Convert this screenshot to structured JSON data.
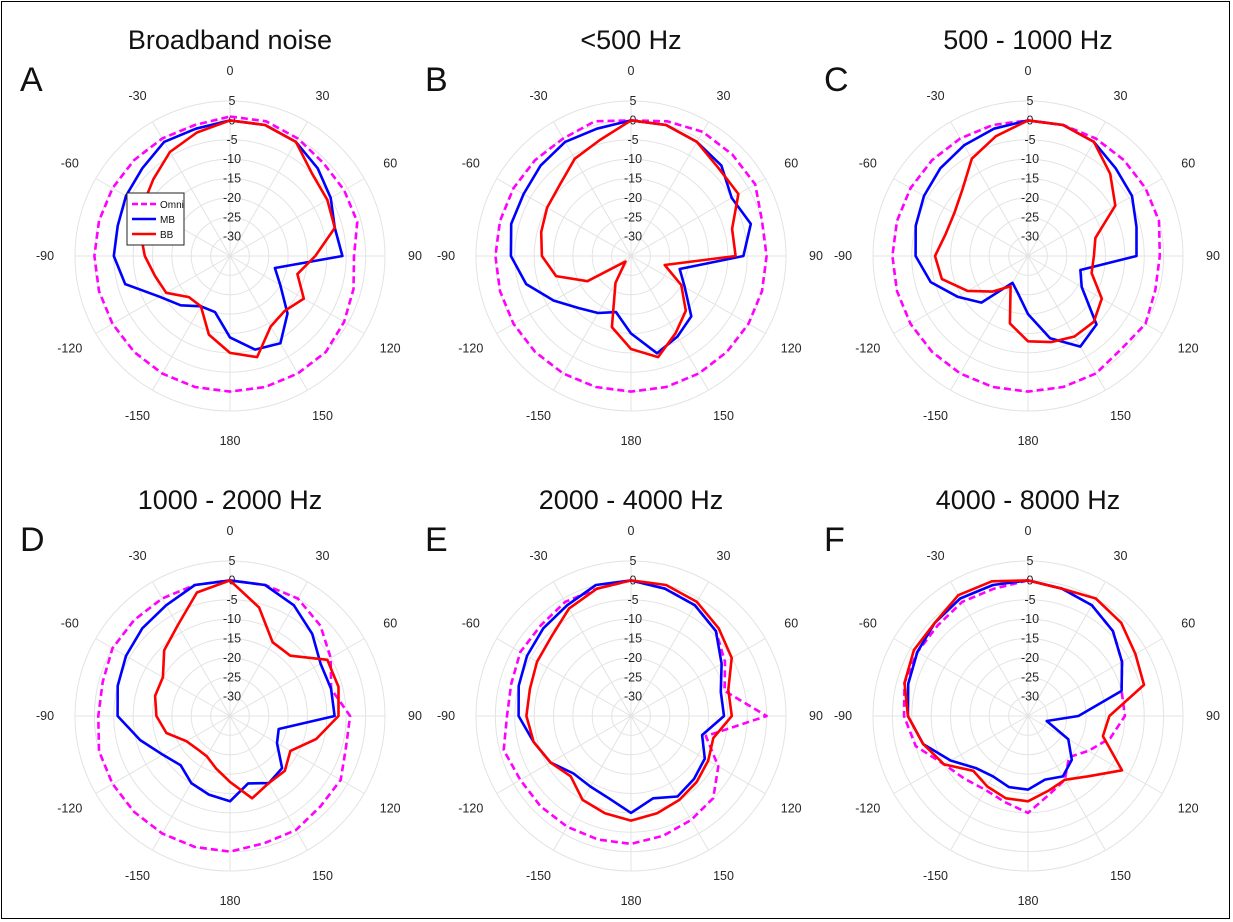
{
  "colors": {
    "omni": "#ff00ff",
    "mb": "#0000ff",
    "bb": "#ff0000",
    "grid": "#e3e3e3"
  },
  "legend": {
    "entries": [
      {
        "series": "omni",
        "label": "Omni",
        "style": "dashed"
      },
      {
        "series": "mb",
        "label": "MB",
        "style": "solid"
      },
      {
        "series": "bb",
        "label": "BB",
        "style": "solid"
      }
    ]
  },
  "chart_data": [
    {
      "type": "polar",
      "letter": "A",
      "title": "Broadband noise",
      "angle_ticks": [
        "0",
        "30",
        "60",
        "90",
        "120",
        "150",
        "180",
        "-150",
        "-120",
        "-90",
        "-60",
        "-30"
      ],
      "radial_ticks": [
        "5",
        "0",
        "-5",
        "-10",
        "-15",
        "-20",
        "-25",
        "-30"
      ],
      "rlim": [
        -35,
        5
      ],
      "angles": [
        0,
        15,
        30,
        45,
        60,
        75,
        90,
        105,
        120,
        135,
        150,
        165,
        180,
        -165,
        -150,
        -135,
        -120,
        -105,
        -90,
        -75,
        -60,
        -45,
        -30,
        -15
      ],
      "series": [
        {
          "name": "Omni",
          "key": "omni",
          "values": [
            1,
            1,
            0,
            -1,
            -1,
            -1,
            -3,
            -2,
            -1,
            0,
            0,
            0,
            0,
            0,
            0,
            0,
            0,
            0,
            0,
            0,
            0,
            0,
            0,
            0
          ]
        },
        {
          "name": "MB",
          "key": "mb",
          "values": [
            0,
            0,
            -1,
            -3,
            -5,
            -7,
            -6,
            -23,
            -20,
            -14,
            -9,
            -10,
            -14,
            -20,
            -20,
            -17,
            -14,
            -7,
            -5,
            -5,
            -4,
            -3,
            -1,
            -1
          ]
        },
        {
          "name": "BB",
          "key": "bb",
          "values": [
            0,
            0,
            -1,
            -5,
            -6,
            -7,
            -13,
            -17,
            -13,
            -15,
            -14,
            -8,
            -10,
            -14,
            -20,
            -20,
            -16,
            -15,
            -13,
            -11,
            -9,
            -7,
            -4,
            -2
          ]
        }
      ]
    },
    {
      "type": "polar",
      "letter": "B",
      "title": "<500 Hz",
      "angle_ticks": [
        "0",
        "30",
        "60",
        "90",
        "120",
        "150",
        "180",
        "-150",
        "-120",
        "-90",
        "-60",
        "-30"
      ],
      "radial_ticks": [
        "5",
        "0",
        "-5",
        "-10",
        "-15",
        "-20",
        "-25",
        "-30"
      ],
      "rlim": [
        -35,
        5
      ],
      "angles": [
        0,
        15,
        30,
        45,
        60,
        75,
        90,
        105,
        120,
        135,
        150,
        165,
        180,
        -165,
        -150,
        -135,
        -120,
        -105,
        -90,
        -75,
        -60,
        -45,
        -30,
        -15
      ],
      "series": [
        {
          "name": "Omni",
          "key": "omni",
          "values": [
            0,
            1,
            2,
            2,
            2,
            0,
            0,
            0,
            0,
            0,
            0,
            0,
            0,
            0,
            0,
            0,
            0,
            0,
            0,
            0,
            0,
            0,
            0,
            1
          ]
        },
        {
          "name": "MB",
          "key": "mb",
          "values": [
            0,
            0,
            -1,
            -2,
            -5,
            -3,
            -6,
            -22,
            -19,
            -13,
            -11,
            -9,
            -15,
            -20,
            -18,
            -16,
            -12,
            -7,
            -4,
            -3,
            -3,
            -2,
            -1,
            -1
          ]
        },
        {
          "name": "BB",
          "key": "bb",
          "values": [
            0,
            0,
            -1,
            -3,
            -3,
            -8,
            -8,
            -26,
            -20,
            -15,
            -12,
            -8,
            -11,
            -16,
            -27,
            -33,
            -22,
            -15,
            -12,
            -11,
            -10,
            -9,
            -6,
            -4
          ]
        }
      ]
    },
    {
      "type": "polar",
      "letter": "C",
      "title": "500 - 1000 Hz",
      "angle_ticks": [
        "0",
        "30",
        "60",
        "90",
        "120",
        "150",
        "180",
        "-150",
        "-120",
        "-90",
        "-60",
        "-30"
      ],
      "radial_ticks": [
        "5",
        "0",
        "-5",
        "-10",
        "-15",
        "-20",
        "-25",
        "-30"
      ],
      "rlim": [
        -35,
        5
      ],
      "angles": [
        0,
        15,
        30,
        45,
        60,
        75,
        90,
        105,
        120,
        135,
        150,
        165,
        180,
        -165,
        -150,
        -135,
        -120,
        -105,
        -90,
        -75,
        -60,
        -45,
        -30,
        -15
      ],
      "series": [
        {
          "name": "Omni",
          "key": "omni",
          "values": [
            0,
            0,
            0,
            0,
            0,
            0,
            -1,
            -1,
            0,
            -1,
            0,
            0,
            0,
            0,
            0,
            0,
            0,
            0,
            0,
            0,
            0,
            0,
            0,
            0
          ]
        },
        {
          "name": "MB",
          "key": "mb",
          "values": [
            0,
            0,
            -1,
            -3,
            -4,
            -6,
            -7,
            -21,
            -19,
            -10,
            -8,
            -13,
            -20,
            -25,
            -27,
            -18,
            -14,
            -9,
            -6,
            -5,
            -4,
            -3,
            -2,
            -1
          ]
        },
        {
          "name": "BB",
          "key": "bb",
          "values": [
            0,
            0,
            -1,
            -5,
            -9,
            -17,
            -18,
            -18,
            -13,
            -11,
            -11,
            -12,
            -13,
            -17,
            -26,
            -22,
            -17,
            -12,
            -11,
            -13,
            -13,
            -11,
            -6,
            -3
          ]
        }
      ]
    },
    {
      "type": "polar",
      "letter": "D",
      "title": "1000 - 2000 Hz",
      "angle_ticks": [
        "0",
        "30",
        "60",
        "90",
        "120",
        "150",
        "180",
        "-150",
        "-120",
        "-90",
        "-60",
        "-30"
      ],
      "radial_ticks": [
        "5",
        "0",
        "-5",
        "-10",
        "-15",
        "-20",
        "-25",
        "-30"
      ],
      "rlim": [
        -35,
        5
      ],
      "angles": [
        0,
        15,
        30,
        45,
        60,
        75,
        90,
        105,
        120,
        135,
        150,
        165,
        180,
        -165,
        -150,
        -135,
        -120,
        -105,
        -90,
        -75,
        -60,
        -45,
        -30,
        -15
      ],
      "series": [
        {
          "name": "Omni",
          "key": "omni",
          "values": [
            0,
            0,
            0,
            -2,
            -5,
            -8,
            -4,
            -4,
            -2,
            -2,
            -1,
            -1,
            0,
            0,
            0,
            0,
            0,
            0,
            -1,
            -1,
            0,
            0,
            0,
            0
          ]
        },
        {
          "name": "MB",
          "key": "mb",
          "values": [
            0,
            0,
            -2,
            -5,
            -8,
            -8,
            -8,
            -22,
            -21,
            -16,
            -15,
            -17,
            -13,
            -14,
            -15,
            -17,
            -15,
            -11,
            -6,
            -5,
            -4,
            -3,
            -2,
            0
          ]
        },
        {
          "name": "BB",
          "key": "bb",
          "values": [
            0,
            -6,
            -13,
            -13,
            -6,
            -6,
            -7,
            -12,
            -17,
            -15,
            -15,
            -13,
            -18,
            -21,
            -23,
            -23,
            -22,
            -18,
            -16,
            -15,
            -15,
            -11,
            -8,
            -2
          ]
        }
      ]
    },
    {
      "type": "polar",
      "letter": "E",
      "title": "2000 - 4000 Hz",
      "angle_ticks": [
        "0",
        "30",
        "60",
        "90",
        "120",
        "150",
        "180",
        "-150",
        "-120",
        "-90",
        "-60",
        "-30"
      ],
      "radial_ticks": [
        "5",
        "0",
        "-5",
        "-10",
        "-15",
        "-20",
        "-25",
        "-30"
      ],
      "rlim": [
        -35,
        5
      ],
      "angles": [
        0,
        15,
        30,
        45,
        60,
        75,
        90,
        105,
        120,
        135,
        150,
        165,
        180,
        -165,
        -150,
        -135,
        -120,
        -105,
        -90,
        -75,
        -60,
        -45,
        -30,
        -15
      ],
      "series": [
        {
          "name": "Omni",
          "key": "omni",
          "values": [
            0,
            -1,
            -2,
            -4,
            -7,
            -10,
            0,
            -15,
            -9,
            -5,
            -4,
            -3,
            -2,
            -2,
            -2,
            -2,
            -2,
            -1,
            -3,
            -3,
            -2,
            -2,
            -1,
            -1
          ]
        },
        {
          "name": "MB",
          "key": "mb",
          "values": [
            0,
            -1,
            -2,
            -4,
            -8,
            -11,
            -11,
            -16,
            -13,
            -12,
            -11,
            -13,
            -10,
            -13,
            -14,
            -14,
            -11,
            -9,
            -6,
            -5,
            -4,
            -3,
            -2,
            0
          ]
        },
        {
          "name": "BB",
          "key": "bb",
          "values": [
            0,
            0,
            -1,
            -3,
            -5,
            -9,
            -9,
            -13,
            -12,
            -11,
            -10,
            -9,
            -8,
            -9,
            -10,
            -13,
            -11,
            -9,
            -8,
            -8,
            -7,
            -6,
            -3,
            -1
          ]
        }
      ]
    },
    {
      "type": "polar",
      "letter": "F",
      "title": "4000 - 8000 Hz",
      "angle_ticks": [
        "0",
        "30",
        "60",
        "90",
        "120",
        "150",
        "180",
        "-150",
        "-120",
        "-90",
        "-60",
        "-30"
      ],
      "radial_ticks": [
        "5",
        "0",
        "-5",
        "-10",
        "-15",
        "-20",
        "-25",
        "-30"
      ],
      "rlim": [
        -35,
        5
      ],
      "angles": [
        0,
        15,
        30,
        45,
        60,
        75,
        90,
        105,
        120,
        135,
        150,
        165,
        180,
        -165,
        -150,
        -135,
        -120,
        -105,
        -90,
        -75,
        -60,
        -45,
        -30,
        -15
      ],
      "series": [
        {
          "name": "Omni",
          "key": "omni",
          "values": [
            0,
            -1,
            -2,
            -4,
            -7,
            -10,
            -10,
            -13,
            -17,
            -20,
            -16,
            -14,
            -10,
            -12,
            -13,
            -12,
            -10,
            -5,
            -3,
            -2,
            -2,
            -2,
            -1,
            -1
          ]
        },
        {
          "name": "MB",
          "key": "mb",
          "values": [
            0,
            -1,
            -2,
            -4,
            -7,
            -10,
            -22,
            -30,
            -23,
            -19,
            -17,
            -18,
            -16,
            -16,
            -17,
            -16,
            -12,
            -7,
            -4,
            -3,
            -2,
            -1,
            0,
            0
          ]
        },
        {
          "name": "BB",
          "key": "bb",
          "values": [
            0,
            -1,
            0,
            -1,
            -3,
            -4,
            -14,
            -15,
            -7,
            -13,
            -16,
            -15,
            -13,
            -13,
            -14,
            -15,
            -10,
            -7,
            -4,
            -2,
            -1,
            -1,
            1,
            1
          ]
        }
      ]
    }
  ]
}
